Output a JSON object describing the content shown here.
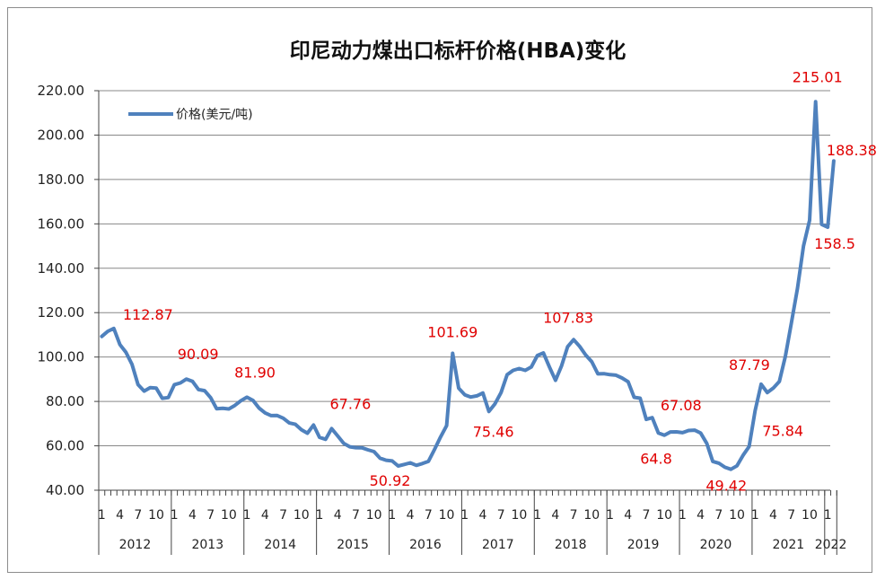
{
  "chart_data": {
    "type": "line",
    "title": "印尼动力煤出口标杆价格(HBA)变化",
    "xlabel": "",
    "ylabel": "",
    "ylim": [
      40,
      220
    ],
    "yticks": [
      "40.00",
      "60.00",
      "80.00",
      "100.00",
      "120.00",
      "140.00",
      "160.00",
      "180.00",
      "200.00",
      "220.00"
    ],
    "grid": "horizontal",
    "legend_position": "top-left",
    "line_color": "#4f81bd",
    "annotation_color": "#e00000",
    "month_tick_labels": [
      "1",
      "4",
      "7",
      "10"
    ],
    "years": [
      "2012",
      "2013",
      "2014",
      "2015",
      "2016",
      "2017",
      "2018",
      "2019",
      "2020",
      "2021",
      "2022"
    ],
    "series": [
      {
        "name": "价格(美元/吨)",
        "values": [
          109.29,
          111.58,
          112.87,
          105.61,
          102.12,
          96.65,
          87.56,
          84.65,
          86.21,
          86.04,
          81.44,
          81.75,
          87.55,
          88.35,
          90.09,
          89.02,
          85.33,
          84.87,
          81.69,
          76.7,
          76.89,
          76.61,
          78.19,
          80.31,
          81.9,
          80.44,
          77.01,
          74.81,
          73.6,
          73.64,
          72.45,
          70.29,
          69.69,
          67.26,
          65.7,
          69.37,
          63.84,
          62.92,
          67.76,
          64.48,
          61.08,
          59.59,
          59.16,
          59.14,
          58.21,
          57.39,
          54.43,
          53.51,
          53.2,
          50.92,
          51.62,
          52.32,
          51.2,
          52.0,
          53.0,
          58.37,
          63.93,
          69.07,
          101.69,
          86.0,
          83.0,
          82.0,
          82.5,
          83.81,
          75.46,
          78.95,
          83.97,
          92.03,
          94.0,
          94.8,
          94.0,
          95.5,
          100.69,
          101.86,
          95.54,
          89.53,
          96.0,
          104.65,
          107.83,
          104.81,
          100.89,
          97.9,
          92.41,
          92.51,
          92.05,
          91.8,
          90.57,
          88.85,
          81.86,
          81.48,
          71.92,
          72.67,
          65.79,
          64.8,
          66.27,
          66.3,
          65.93,
          66.89,
          67.08,
          65.77,
          61.11,
          52.98,
          52.16,
          50.34,
          49.42,
          51.0,
          55.71,
          59.65,
          75.84,
          87.79,
          84.0,
          86.0,
          89.0,
          100.33,
          115.35,
          130.99,
          150.03,
          161.63,
          215.01,
          159.79,
          158.5,
          188.38
        ]
      }
    ],
    "annotations": [
      {
        "label": "112.87",
        "index": 2
      },
      {
        "label": "90.09",
        "index": 14
      },
      {
        "label": "81.90",
        "index": 24
      },
      {
        "label": "67.76",
        "index": 38
      },
      {
        "label": "50.92",
        "index": 49
      },
      {
        "label": "101.69",
        "index": 58
      },
      {
        "label": "75.46",
        "index": 64
      },
      {
        "label": "107.83",
        "index": 78
      },
      {
        "label": "64.8",
        "index": 93
      },
      {
        "label": "67.08",
        "index": 98
      },
      {
        "label": "49.42",
        "index": 104
      },
      {
        "label": "87.79",
        "index": 109
      },
      {
        "label": "75.84",
        "index": 108
      },
      {
        "label": "215.01",
        "index": 118
      },
      {
        "label": "188.38",
        "index": 121
      },
      {
        "label": "158.5",
        "index": 120
      }
    ]
  }
}
